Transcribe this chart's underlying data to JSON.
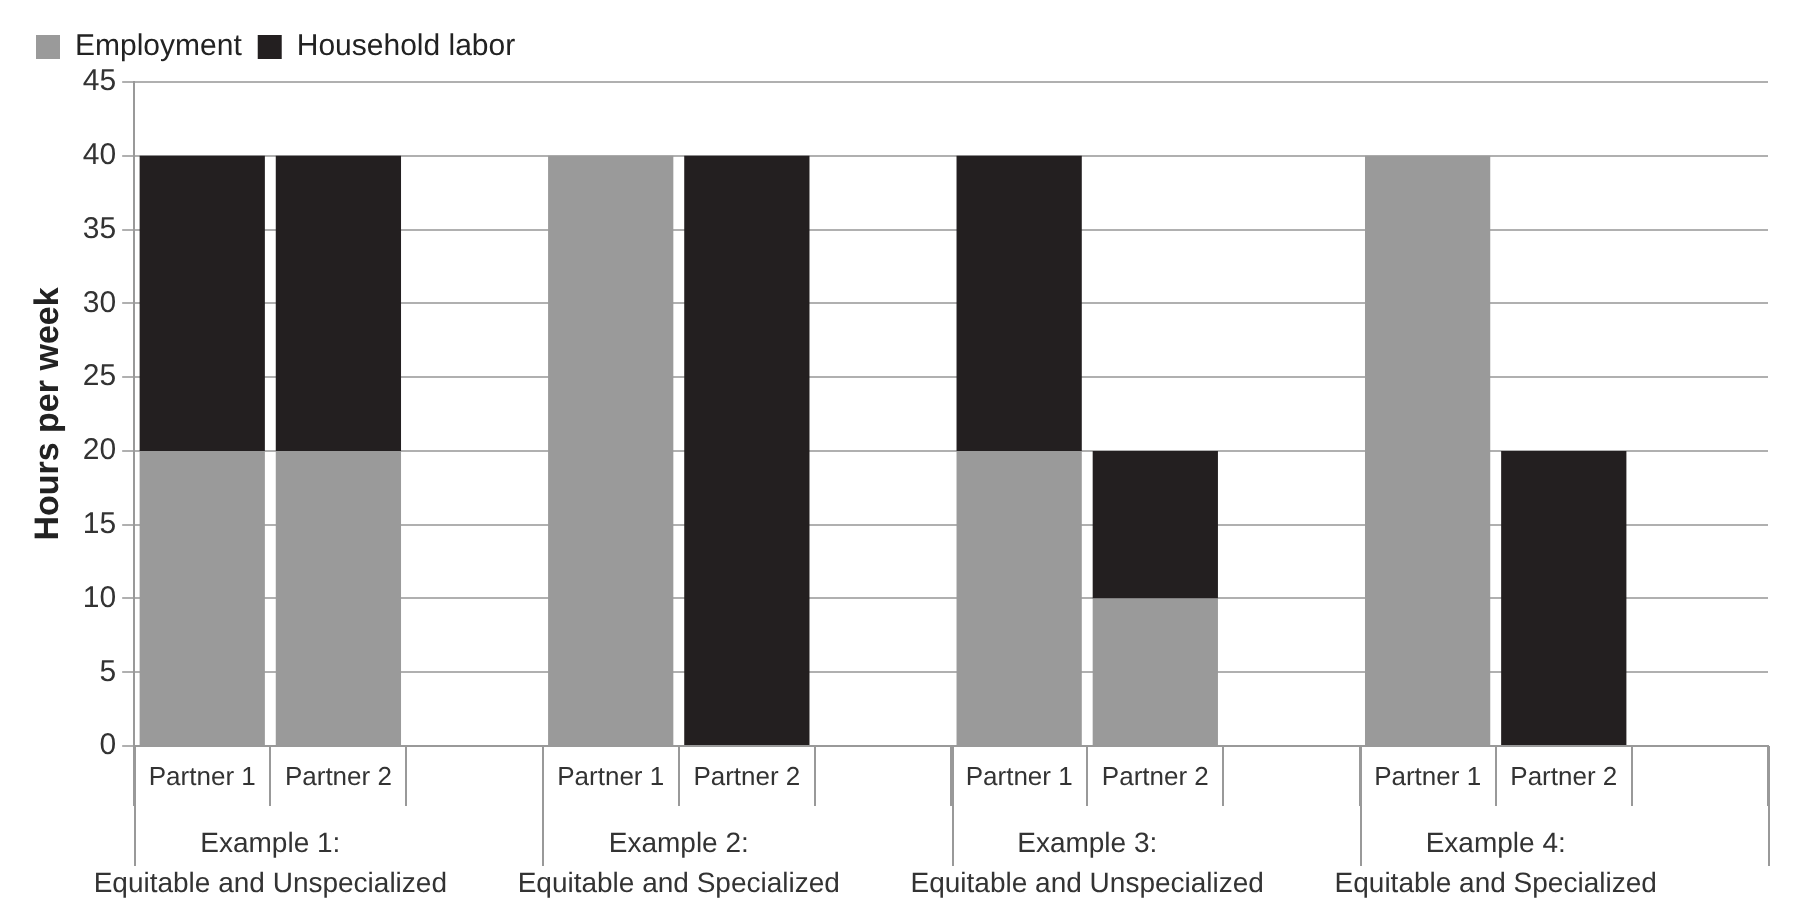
{
  "chart_data": {
    "type": "bar",
    "stacked": true,
    "ylabel": "Hours per week",
    "categories": [
      "Partner 1",
      "Partner 2",
      null,
      "Partner 1",
      "Partner 2",
      null,
      "Partner 1",
      "Partner 2",
      null,
      "Partner 1",
      "Partner 2",
      null
    ],
    "series": [
      {
        "name": "Employment",
        "color": "#9a9a9a",
        "values": [
          20,
          20,
          null,
          40,
          0,
          null,
          20,
          10,
          null,
          40,
          0,
          null
        ]
      },
      {
        "name": "Household labor",
        "color": "#231f20",
        "values": [
          20,
          20,
          null,
          0,
          40,
          null,
          20,
          10,
          null,
          0,
          20,
          null
        ]
      }
    ],
    "ylim": [
      0,
      45
    ],
    "yticks": [
      0,
      5,
      10,
      15,
      20,
      25,
      30,
      35,
      40,
      45
    ],
    "grid": "y",
    "legend": "top left",
    "annotations": [
      "Example 1:\nEquitable and Unspecialized",
      "Example 2:\nEquitable and Specialized",
      "Example 3:\nEquitable and Unspecialized",
      "Example 4:\nEquitable and Specialized"
    ]
  }
}
